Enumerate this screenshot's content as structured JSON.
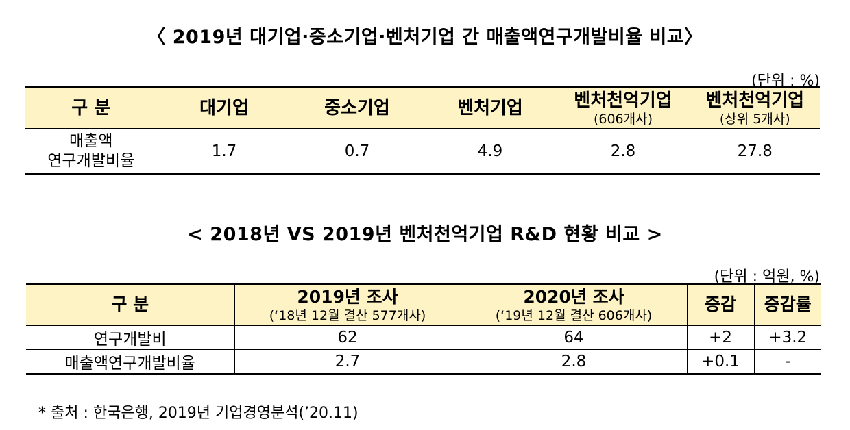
{
  "title1": "〈 2019년 대기업·중소기업·벤처기업 간 매출액연구개발비율 비교〉",
  "unit1": "(단위 : %)",
  "table1": {
    "headers": [
      {
        "main": "구 분",
        "sub": ""
      },
      {
        "main": "대기업",
        "sub": ""
      },
      {
        "main": "중소기업",
        "sub": ""
      },
      {
        "main": "벤처기업",
        "sub": ""
      },
      {
        "main": "벤처천억기업",
        "sub": "(606개사)"
      },
      {
        "main": "벤처천억기업",
        "sub": "(상위 5개사)"
      }
    ],
    "row": {
      "label_line1": "매출액",
      "label_line2": "연구개발비율",
      "values": [
        "1.7",
        "0.7",
        "4.9",
        "2.8",
        "27.8"
      ]
    }
  },
  "title2": "< 2018년 VS 2019년 벤처천억기업 R&D 현황 비교 >",
  "unit2": "(단위 : 억원, %)",
  "table2": {
    "headers": [
      {
        "main": "구 분",
        "sub": ""
      },
      {
        "main": "2019년 조사",
        "sub": "(‘18년 12월 결산 577개사)"
      },
      {
        "main": "2020년 조사",
        "sub": "(‘19년 12월 결산 606개사)"
      },
      {
        "main": "증감",
        "sub": ""
      },
      {
        "main": "증감률",
        "sub": ""
      }
    ],
    "rows": [
      {
        "label": "연구개발비",
        "values": [
          "62",
          "64",
          "+2",
          "+3.2"
        ]
      },
      {
        "label": "매출액연구개발비율",
        "values": [
          "2.7",
          "2.8",
          "+0.1",
          "-"
        ]
      }
    ]
  },
  "source": "* 출처 : 한국은행, 2019년 기업경영분석(’20.11)"
}
